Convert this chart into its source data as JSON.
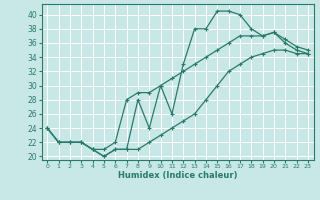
{
  "xlabel": "Humidex (Indice chaleur)",
  "bg_color": "#c8e8e8",
  "grid_color": "#ffffff",
  "line_color": "#2a7a6a",
  "xlim": [
    -0.5,
    23.5
  ],
  "ylim": [
    19.5,
    41.5
  ],
  "xticks": [
    0,
    1,
    2,
    3,
    4,
    5,
    6,
    7,
    8,
    9,
    10,
    11,
    12,
    13,
    14,
    15,
    16,
    17,
    18,
    19,
    20,
    21,
    22,
    23
  ],
  "yticks": [
    20,
    22,
    24,
    26,
    28,
    30,
    32,
    34,
    36,
    38,
    40
  ],
  "series1": [
    24,
    22,
    22,
    22,
    21,
    20,
    21,
    21,
    28,
    24,
    30,
    26,
    33,
    38,
    38,
    40.5,
    40.5,
    40,
    38,
    37,
    37.5,
    36,
    35,
    34.5
  ],
  "series2": [
    24,
    22,
    22,
    22,
    21,
    21,
    22,
    28,
    29,
    29,
    30,
    31,
    32,
    33,
    34,
    35,
    36,
    37,
    37,
    37,
    37.5,
    36.5,
    35.5,
    35
  ],
  "series3": [
    24,
    22,
    22,
    22,
    21,
    20,
    21,
    21,
    21,
    22,
    23,
    24,
    25,
    26,
    28,
    30,
    32,
    33,
    34,
    34.5,
    35,
    35,
    34.5,
    34.5
  ]
}
